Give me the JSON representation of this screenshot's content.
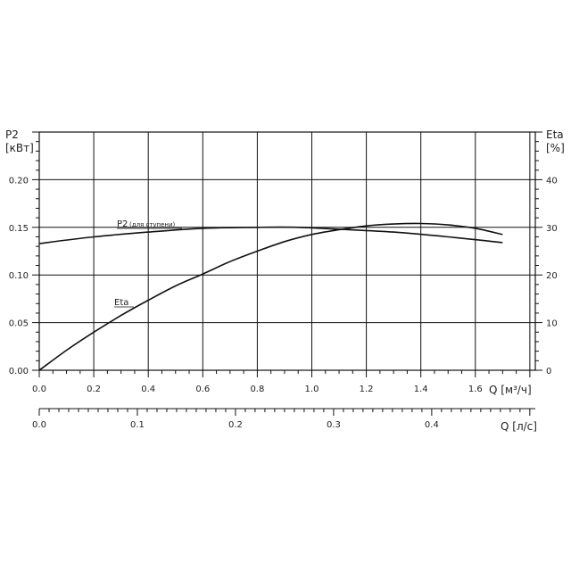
{
  "chart_data": {
    "type": "line",
    "left_axis": {
      "label_line1": "P2",
      "label_line2": "[кВт]",
      "ticks": [
        "0.00",
        "0.05",
        "0.10",
        "0.15",
        "0.20"
      ],
      "range": [
        0,
        0.25
      ]
    },
    "right_axis": {
      "label_line1": "Eta",
      "label_line2": "[%]",
      "ticks": [
        "0",
        "10",
        "20",
        "30",
        "40"
      ],
      "range": [
        0,
        50
      ]
    },
    "x_axis": {
      "label": "Q [м³/ч]",
      "ticks": [
        "0.0",
        "0.2",
        "0.4",
        "0.6",
        "0.8",
        "1.0",
        "1.2",
        "1.4",
        "1.6"
      ],
      "range": [
        0,
        1.82
      ]
    },
    "x_axis_secondary": {
      "label": "Q [л/с]",
      "ticks": [
        "0.0",
        "0.1",
        "0.2",
        "0.3",
        "0.4"
      ],
      "range": [
        0,
        0.5056
      ]
    },
    "series": [
      {
        "name": "P2",
        "name_suffix": "(для ступени)",
        "axis": "left",
        "x": [
          0,
          0.2,
          0.4,
          0.6,
          0.8,
          0.95,
          1.1,
          1.3,
          1.5,
          1.7
        ],
        "y": [
          0.133,
          0.14,
          0.145,
          0.149,
          0.15,
          0.15,
          0.148,
          0.145,
          0.14,
          0.134
        ]
      },
      {
        "name": "Eta",
        "axis": "right",
        "x": [
          0,
          0.1,
          0.2,
          0.3,
          0.4,
          0.5,
          0.6,
          0.7,
          0.8,
          0.9,
          1.0,
          1.1,
          1.2,
          1.3,
          1.4,
          1.5,
          1.6,
          1.7
        ],
        "y": [
          0,
          4.2,
          8.0,
          11.5,
          14.7,
          17.7,
          20.2,
          22.8,
          25.0,
          27.0,
          28.5,
          29.5,
          30.3,
          30.7,
          30.8,
          30.5,
          29.8,
          28.5
        ]
      }
    ],
    "grid": true
  }
}
